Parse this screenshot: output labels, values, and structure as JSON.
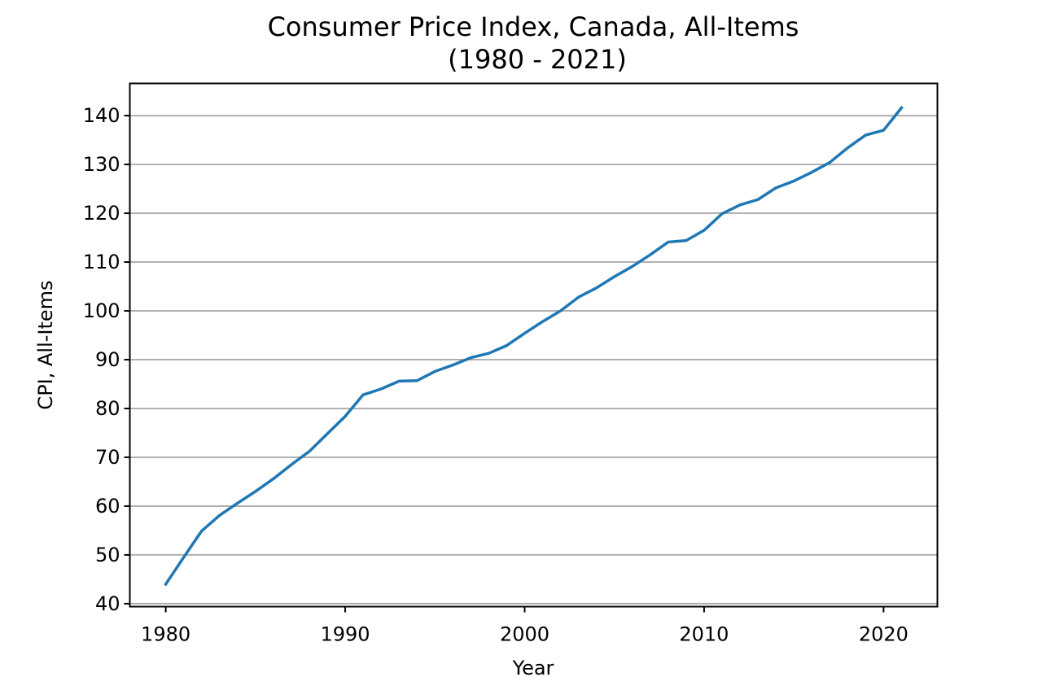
{
  "chart_data": {
    "type": "line",
    "title": "Consumer Price Index, Canada, All-Items",
    "subtitle": "(1980 - 2021)",
    "xlabel": "Year",
    "ylabel": "CPI, All-Items",
    "xlim": [
      1978,
      2023
    ],
    "ylim": [
      39.4,
      146.6
    ],
    "x_ticks": [
      1980,
      1990,
      2000,
      2010,
      2020
    ],
    "y_ticks": [
      40,
      50,
      60,
      70,
      80,
      90,
      100,
      110,
      120,
      130,
      140
    ],
    "grid": "horizontal",
    "line_color": "#1f77b4",
    "grid_color": "#b0b0b0",
    "series": [
      {
        "x": [
          1980,
          1981,
          1982,
          1983,
          1984,
          1985,
          1986,
          1987,
          1988,
          1989,
          1990,
          1991,
          1992,
          1993,
          1994,
          1995,
          1996,
          1997,
          1998,
          1999,
          2000,
          2001,
          2002,
          2003,
          2004,
          2005,
          2006,
          2007,
          2008,
          2009,
          2010,
          2011,
          2012,
          2013,
          2014,
          2015,
          2016,
          2017,
          2018,
          2019,
          2020,
          2021
        ],
        "y": [
          44.0,
          49.5,
          54.9,
          58.1,
          60.6,
          63.0,
          65.6,
          68.5,
          71.2,
          74.8,
          78.4,
          82.8,
          84.0,
          85.6,
          85.7,
          87.6,
          88.9,
          90.4,
          91.3,
          92.9,
          95.4,
          97.8,
          100.0,
          102.8,
          104.7,
          107.0,
          109.1,
          111.5,
          114.1,
          114.4,
          116.5,
          119.9,
          121.7,
          122.8,
          125.2,
          126.6,
          128.4,
          130.4,
          133.4,
          136.0,
          137.0,
          141.6
        ]
      }
    ]
  }
}
